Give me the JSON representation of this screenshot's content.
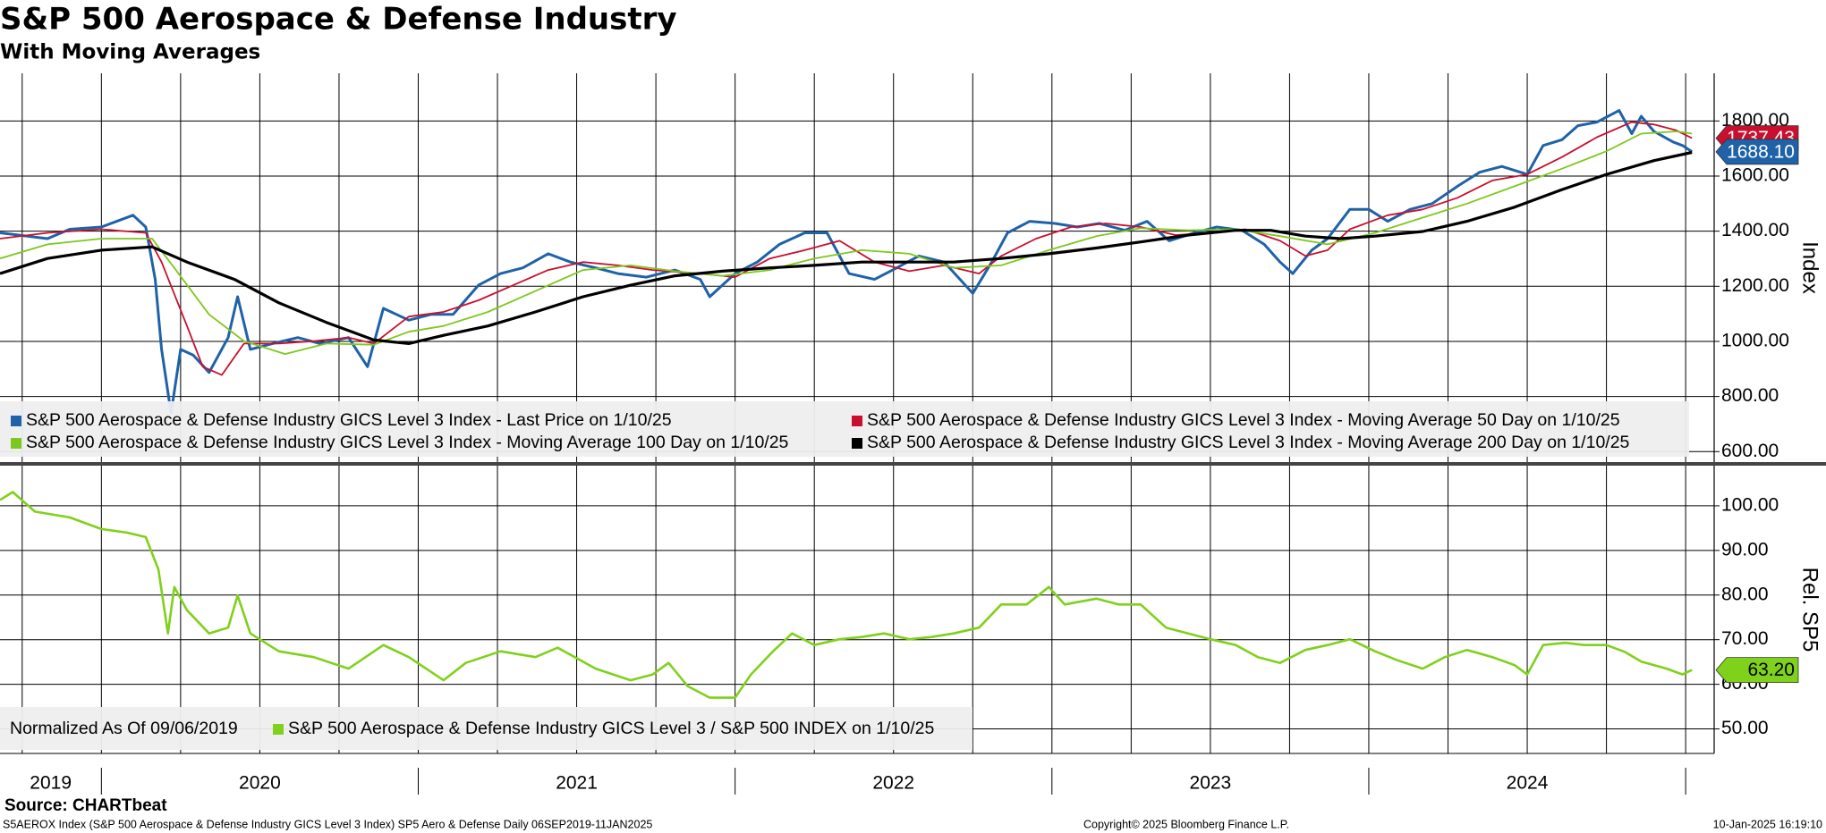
{
  "chart_data": [
    {
      "type": "line",
      "title": "S&P 500 Aerospace & Defense Industry",
      "subtitle": "With Moving Averages",
      "ylabel": "Index",
      "grid": true,
      "legend": "lower left",
      "xlim": [
        2019.68,
        2025.09
      ],
      "xticks": [
        2019.75,
        2020,
        2020.25,
        2020.5,
        2020.75,
        2021,
        2021.25,
        2021.5,
        2021.75,
        2022,
        2022.25,
        2022.5,
        2022.75,
        2023,
        2023.25,
        2023.5,
        2023.75,
        2024,
        2024.25,
        2024.5,
        2024.75,
        2025
      ],
      "ylim": [
        562,
        1973
      ],
      "yticks": [
        {
          "value": 600,
          "label": "600.00"
        },
        {
          "value": 800,
          "label": "800.00"
        },
        {
          "value": 1000,
          "label": "1000.00"
        },
        {
          "value": 1200,
          "label": "1200.00"
        },
        {
          "value": 1400,
          "label": "1400.00"
        },
        {
          "value": 1600,
          "label": "1600.00"
        },
        {
          "value": 1800,
          "label": "1800.00"
        }
      ],
      "series": [
        {
          "name": "S&P 500 Aerospace & Defense Industry GICS Level 3 Index - Last Price on 1/10/25",
          "color": "#1f62a8",
          "width": 3,
          "end_label": "1688.10",
          "x": [
            2019.68,
            2019.83,
            2019.9,
            2020.0,
            2020.1,
            2020.14,
            2020.17,
            2020.19,
            2020.22,
            2020.25,
            2020.29,
            2020.34,
            2020.4,
            2020.43,
            2020.47,
            2020.54,
            2020.62,
            2020.69,
            2020.78,
            2020.84,
            2020.89,
            2020.97,
            2021.04,
            2021.11,
            2021.19,
            2021.26,
            2021.33,
            2021.41,
            2021.48,
            2021.56,
            2021.63,
            2021.72,
            2021.81,
            2021.89,
            2021.92,
            2022.0,
            2022.07,
            2022.14,
            2022.22,
            2022.29,
            2022.36,
            2022.44,
            2022.51,
            2022.58,
            2022.66,
            2022.71,
            2022.75,
            2022.81,
            2022.86,
            2022.93,
            2023.01,
            2023.08,
            2023.15,
            2023.23,
            2023.3,
            2023.37,
            2023.45,
            2023.52,
            2023.6,
            2023.67,
            2023.72,
            2023.76,
            2023.82,
            2023.87,
            2023.94,
            2024.0,
            2024.06,
            2024.13,
            2024.2,
            2024.28,
            2024.35,
            2024.42,
            2024.5,
            2024.55,
            2024.61,
            2024.66,
            2024.72,
            2024.79,
            2024.83,
            2024.86,
            2024.9,
            2024.96,
            2024.99,
            2025.02
          ],
          "values": [
            1394,
            1373,
            1407,
            1415,
            1458,
            1415,
            1225,
            971,
            739,
            971,
            950,
            887,
            1014,
            1162,
            971,
            992,
            1014,
            992,
            1014,
            908,
            1120,
            1077,
            1098,
            1098,
            1204,
            1246,
            1267,
            1318,
            1288,
            1267,
            1246,
            1233,
            1259,
            1225,
            1162,
            1246,
            1288,
            1352,
            1394,
            1394,
            1246,
            1225,
            1267,
            1310,
            1288,
            1225,
            1174,
            1288,
            1394,
            1436,
            1428,
            1415,
            1428,
            1403,
            1436,
            1365,
            1394,
            1415,
            1403,
            1352,
            1288,
            1246,
            1331,
            1373,
            1479,
            1479,
            1436,
            1479,
            1500,
            1563,
            1614,
            1635,
            1606,
            1711,
            1732,
            1783,
            1796,
            1838,
            1754,
            1817,
            1762,
            1724,
            1711,
            1688.1
          ]
        },
        {
          "name": "S&P 500 Aerospace & Defense Industry GICS Level 3 Index - Moving Average 50 Day on 1/10/25",
          "color": "#c8102e",
          "width": 1.8,
          "end_label": "1737.43",
          "x": [
            2019.68,
            2019.83,
            2020.0,
            2020.14,
            2020.19,
            2020.27,
            2020.32,
            2020.38,
            2020.45,
            2020.56,
            2020.67,
            2020.78,
            2020.86,
            2020.97,
            2021.08,
            2021.19,
            2021.3,
            2021.41,
            2021.52,
            2021.63,
            2021.74,
            2021.89,
            2022.0,
            2022.11,
            2022.22,
            2022.33,
            2022.44,
            2022.55,
            2022.66,
            2022.77,
            2022.84,
            2022.95,
            2023.06,
            2023.17,
            2023.28,
            2023.39,
            2023.5,
            2023.61,
            2023.72,
            2023.8,
            2023.87,
            2023.94,
            2024.06,
            2024.17,
            2024.28,
            2024.39,
            2024.5,
            2024.61,
            2024.72,
            2024.83,
            2024.9,
            2024.97,
            2025.02
          ],
          "values": [
            1373,
            1394,
            1407,
            1394,
            1288,
            1056,
            908,
            878,
            992,
            992,
            1001,
            1014,
            992,
            1090,
            1107,
            1149,
            1204,
            1259,
            1288,
            1276,
            1259,
            1246,
            1233,
            1301,
            1331,
            1365,
            1288,
            1255,
            1276,
            1246,
            1310,
            1373,
            1415,
            1428,
            1415,
            1386,
            1394,
            1407,
            1365,
            1310,
            1331,
            1407,
            1458,
            1479,
            1521,
            1584,
            1606,
            1669,
            1741,
            1796,
            1787,
            1766,
            1737.43
          ]
        },
        {
          "name": "S&P 500 Aerospace & Defense Industry GICS Level 3 Index - Moving Average 100 Day on 1/10/25",
          "color": "#7dc81e",
          "width": 1.8,
          "x": [
            2019.68,
            2019.83,
            2020.0,
            2020.16,
            2020.23,
            2020.34,
            2020.45,
            2020.58,
            2020.71,
            2020.86,
            2020.97,
            2021.08,
            2021.22,
            2021.37,
            2021.52,
            2021.67,
            2021.81,
            2021.96,
            2022.11,
            2022.25,
            2022.4,
            2022.55,
            2022.69,
            2022.84,
            2022.99,
            2023.14,
            2023.28,
            2023.43,
            2023.58,
            2023.72,
            2023.87,
            2024.02,
            2024.17,
            2024.31,
            2024.46,
            2024.61,
            2024.75,
            2024.86,
            2024.97,
            2025.02
          ],
          "values": [
            1301,
            1352,
            1373,
            1373,
            1267,
            1098,
            1001,
            954,
            992,
            988,
            1035,
            1056,
            1107,
            1183,
            1259,
            1276,
            1255,
            1238,
            1259,
            1301,
            1331,
            1318,
            1267,
            1276,
            1331,
            1382,
            1411,
            1403,
            1407,
            1382,
            1352,
            1394,
            1449,
            1500,
            1563,
            1627,
            1690,
            1754,
            1762,
            1754
          ]
        },
        {
          "name": "S&P 500 Aerospace & Defense Industry GICS Level 3 Index - Moving Average 200 Day on 1/10/25",
          "color": "#000000",
          "width": 3.2,
          "x": [
            2019.68,
            2019.83,
            2020.0,
            2020.16,
            2020.27,
            2020.42,
            2020.56,
            2020.71,
            2020.86,
            2020.97,
            2021.08,
            2021.22,
            2021.37,
            2021.52,
            2021.67,
            2021.81,
            2021.96,
            2022.11,
            2022.25,
            2022.4,
            2022.55,
            2022.69,
            2022.84,
            2022.99,
            2023.14,
            2023.28,
            2023.43,
            2023.58,
            2023.69,
            2023.8,
            2023.91,
            2024.02,
            2024.17,
            2024.31,
            2024.46,
            2024.61,
            2024.75,
            2024.9,
            2025.02
          ],
          "values": [
            1246,
            1301,
            1331,
            1343,
            1288,
            1225,
            1140,
            1069,
            1005,
            992,
            1022,
            1056,
            1107,
            1162,
            1204,
            1238,
            1255,
            1267,
            1276,
            1288,
            1288,
            1288,
            1301,
            1318,
            1339,
            1361,
            1386,
            1403,
            1403,
            1382,
            1373,
            1382,
            1399,
            1436,
            1487,
            1551,
            1606,
            1656,
            1686
          ]
        }
      ]
    },
    {
      "type": "line",
      "ylabel": "Rel. SP5",
      "grid": true,
      "legend": "lower left",
      "legend_note": "Normalized As Of 09/06/2019",
      "xlim": [
        2019.68,
        2025.09
      ],
      "xticks": [
        2019.75,
        2020,
        2020.25,
        2020.5,
        2020.75,
        2021,
        2021.25,
        2021.5,
        2021.75,
        2022,
        2022.25,
        2022.5,
        2022.75,
        2023,
        2023.25,
        2023.5,
        2023.75,
        2024,
        2024.25,
        2024.5,
        2024.75,
        2025
      ],
      "xtick_labels": [
        {
          "value": 2019.84,
          "label": "2019"
        },
        {
          "value": 2020.5,
          "label": "2020"
        },
        {
          "value": 2021.5,
          "label": "2021"
        },
        {
          "value": 2022.5,
          "label": "2022"
        },
        {
          "value": 2023.5,
          "label": "2023"
        },
        {
          "value": 2024.5,
          "label": "2024"
        }
      ],
      "ylim": [
        44.5,
        109
      ],
      "yticks": [
        {
          "value": 50,
          "label": "50.00"
        },
        {
          "value": 60,
          "label": "60.00"
        },
        {
          "value": 70,
          "label": "70.00"
        },
        {
          "value": 80,
          "label": "80.00"
        },
        {
          "value": 90,
          "label": "90.00"
        },
        {
          "value": 100,
          "label": "100.00"
        }
      ],
      "series": [
        {
          "name": "S&P 500 Aerospace & Defense Industry GICS Level 3 / S&P 500 INDEX on 1/10/25",
          "color": "#7fd11b",
          "width": 2.6,
          "end_label": "63.20",
          "x": [
            2019.68,
            2019.72,
            2019.79,
            2019.9,
            2020.0,
            2020.08,
            2020.14,
            2020.18,
            2020.21,
            2020.23,
            2020.27,
            2020.34,
            2020.4,
            2020.43,
            2020.47,
            2020.56,
            2020.67,
            2020.78,
            2020.89,
            2020.97,
            2021.08,
            2021.15,
            2021.26,
            2021.37,
            2021.44,
            2021.56,
            2021.67,
            2021.74,
            2021.79,
            2021.85,
            2021.92,
            2022.0,
            2022.05,
            2022.12,
            2022.18,
            2022.25,
            2022.33,
            2022.4,
            2022.47,
            2022.55,
            2022.62,
            2022.69,
            2022.77,
            2022.84,
            2022.92,
            2022.99,
            2023.04,
            2023.14,
            2023.21,
            2023.28,
            2023.36,
            2023.43,
            2023.5,
            2023.58,
            2023.65,
            2023.72,
            2023.8,
            2023.87,
            2023.94,
            2024.02,
            2024.09,
            2024.17,
            2024.24,
            2024.31,
            2024.39,
            2024.46,
            2024.5,
            2024.55,
            2024.62,
            2024.68,
            2024.75,
            2024.81,
            2024.86,
            2024.94,
            2024.99,
            2025.02
          ],
          "values": [
            101.3,
            103.1,
            98.7,
            97.4,
            94.8,
            94.0,
            93.0,
            85.7,
            71.4,
            81.8,
            76.6,
            71.4,
            72.7,
            79.9,
            71.4,
            67.4,
            66.1,
            63.5,
            68.8,
            66.1,
            60.9,
            64.8,
            67.4,
            66.1,
            68.2,
            63.5,
            60.9,
            62.2,
            64.8,
            59.6,
            57.0,
            57.0,
            62.2,
            67.4,
            71.4,
            68.8,
            70.1,
            70.6,
            71.4,
            70.1,
            70.6,
            71.4,
            72.7,
            77.9,
            77.9,
            81.8,
            77.9,
            79.2,
            77.9,
            77.9,
            72.7,
            71.4,
            70.1,
            68.8,
            66.1,
            64.8,
            67.7,
            68.8,
            70.1,
            67.4,
            65.4,
            63.5,
            66.1,
            67.7,
            66.1,
            64.3,
            62.2,
            68.8,
            69.3,
            68.8,
            68.8,
            67.2,
            65.1,
            63.5,
            62.2,
            63.2
          ]
        }
      ]
    }
  ],
  "footer": {
    "source": "Source: CHARTbeat",
    "description": "S5AEROX Index (S&P 500 Aerospace & Defense Industry GICS Level 3 Index) SP5 Aero & Defense  Daily 06SEP2019-11JAN2025",
    "copyright": "Copyright© 2025 Bloomberg Finance L.P.",
    "timestamp": "10-Jan-2025 16:19:10"
  }
}
